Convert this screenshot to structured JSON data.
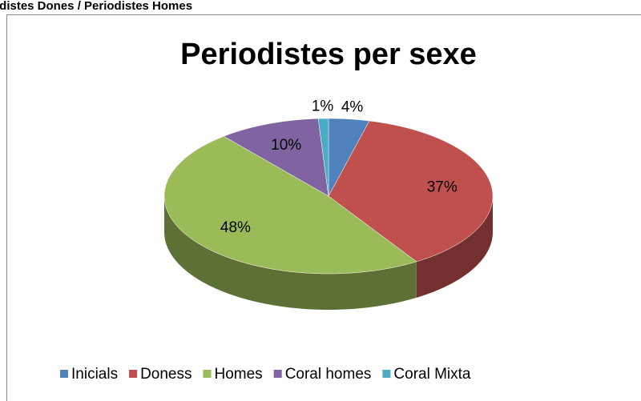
{
  "header": {
    "title": "odistes Dones / Periodistes Homes"
  },
  "chart_data": {
    "type": "pie",
    "title": "Periodistes per sexe",
    "categories": [
      "Inicials",
      "Doness",
      "Homes",
      "Coral homes",
      "Coral Mixta"
    ],
    "values": [
      4,
      37,
      48,
      10,
      1
    ],
    "value_labels": [
      "4%",
      "37%",
      "48%",
      "10%",
      "1%"
    ],
    "colors": [
      "#4f81bd",
      "#c0504d",
      "#9bbb59",
      "#8064a2",
      "#4bacc6"
    ],
    "legend": "bottom"
  }
}
